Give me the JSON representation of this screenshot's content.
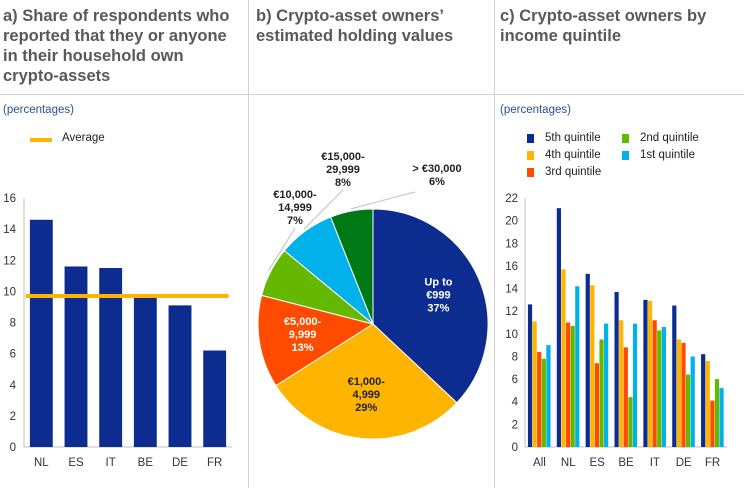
{
  "panels": {
    "a": {
      "title_lines": [
        "a) Share of respondents who",
        "reported that they or anyone",
        "in their household own",
        "crypto-assets"
      ],
      "unit": "(percentages)",
      "legend": "Average"
    },
    "b": {
      "title_lines": [
        "b) Crypto-asset owners’",
        "estimated holding values"
      ]
    },
    "c": {
      "title_lines": [
        "c) Crypto-asset owners by",
        "income quintile"
      ],
      "unit": "(percentages)"
    }
  },
  "chart_data": [
    {
      "type": "bar",
      "categories": [
        "NL",
        "ES",
        "IT",
        "BE",
        "DE",
        "FR"
      ],
      "values": [
        14.6,
        11.6,
        11.5,
        9.7,
        9.1,
        6.2
      ],
      "average": 9.7,
      "ylim": [
        0,
        16
      ],
      "yticks": [
        0,
        2,
        4,
        6,
        8,
        10,
        12,
        14,
        16
      ],
      "colors": {
        "bar": "#0c2d8f",
        "average": "#ffb400"
      }
    },
    {
      "type": "pie",
      "slices": [
        {
          "label_lines": [
            "Up to",
            "€999",
            "37%"
          ],
          "value": 37,
          "color": "#0c2d8f",
          "label_color": "#ffffff"
        },
        {
          "label_lines": [
            "€1,000-",
            "4,999",
            "29%"
          ],
          "value": 29,
          "color": "#ffb400",
          "label_color": "#222222"
        },
        {
          "label_lines": [
            "€5,000-",
            "9,999",
            "13%"
          ],
          "value": 13,
          "color": "#ff4b00",
          "label_color": "#ffffff"
        },
        {
          "label_lines": [
            "€10,000-",
            "14,999",
            "7%"
          ],
          "value": 7,
          "color": "#65b800",
          "label_color": "#222222"
        },
        {
          "label_lines": [
            "€15,000-",
            "29,999",
            "8%"
          ],
          "value": 8,
          "color": "#00b1ea",
          "label_color": "#222222"
        },
        {
          "label_lines": [
            "> €30,000",
            "6%"
          ],
          "value": 6,
          "color": "#007816",
          "label_color": "#222222"
        }
      ]
    },
    {
      "type": "bar",
      "categories": [
        "All",
        "NL",
        "ES",
        "BE",
        "IT",
        "DE",
        "FR"
      ],
      "series": [
        {
          "name": "5th quintile",
          "color": "#0c2d8f",
          "values": [
            12.6,
            21.1,
            15.3,
            13.7,
            13.0,
            12.5,
            8.2
          ]
        },
        {
          "name": "4th quintile",
          "color": "#ffb400",
          "values": [
            11.1,
            15.7,
            14.3,
            11.2,
            12.9,
            9.5,
            7.6
          ]
        },
        {
          "name": "3rd quintile",
          "color": "#ff4b00",
          "values": [
            8.4,
            11.0,
            7.4,
            8.8,
            11.2,
            9.2,
            4.1
          ]
        },
        {
          "name": "2nd quintile",
          "color": "#65b800",
          "values": [
            7.8,
            10.7,
            9.5,
            4.4,
            10.3,
            6.4,
            6.0
          ]
        },
        {
          "name": "1st quintile",
          "color": "#00b1ea",
          "values": [
            9.0,
            14.2,
            10.9,
            10.9,
            10.6,
            8.0,
            5.2
          ]
        }
      ],
      "ylim": [
        0,
        22
      ],
      "yticks": [
        0,
        2,
        4,
        6,
        8,
        10,
        12,
        14,
        16,
        18,
        20,
        22
      ]
    }
  ]
}
